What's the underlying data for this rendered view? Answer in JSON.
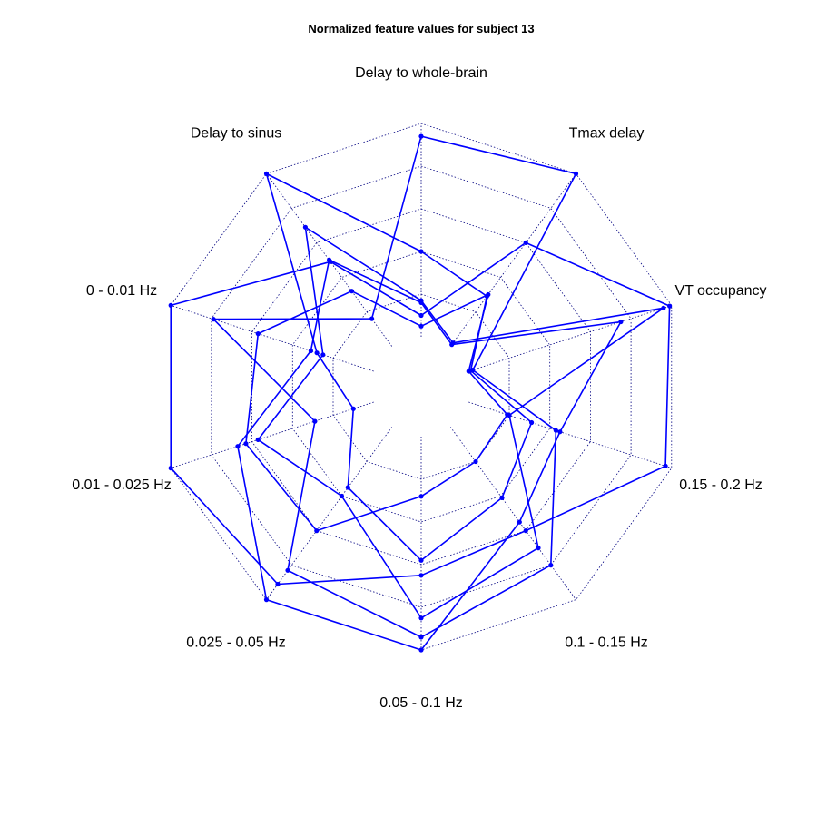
{
  "chart_data": {
    "type": "radar",
    "title": "Normalized feature values for subject 13",
    "axes": [
      "Delay to whole-brain",
      "Tmax delay",
      "VT occupancy",
      "0.15 - 0.2 Hz",
      "0.1 - 0.15 Hz",
      "0.05 - 0.1 Hz",
      "0.025 - 0.05 Hz",
      "0.01 - 0.025 Hz",
      "0 - 0.01 Hz",
      "Delay to sinus"
    ],
    "scale": [
      0,
      1
    ],
    "grid_levels": [
      0.2,
      0.4,
      0.6,
      0.8,
      1.0
    ],
    "line_color": "#0000ff",
    "grid_color": "#000080",
    "grid_style": "dotted",
    "series": [
      {
        "values": [
          0.1,
          0.6,
          0.99,
          0.97,
          0.6,
          0.65,
          0.91,
          1.0,
          1.0,
          0.49
        ]
      },
      {
        "values": [
          0.4,
          0.29,
          0.01,
          0.31,
          0.41,
          0.58,
          0.35,
          0.1,
          0.28,
          1.0
        ]
      },
      {
        "values": [
          0.94,
          1.0,
          0.02,
          0.43,
          0.8,
          0.94,
          0.83,
          0.29,
          0.79,
          0.16
        ]
      },
      {
        "values": [
          0.17,
          0.02,
          0.96,
          0.2,
          0.7,
          0.85,
          0.4,
          0.57,
          0.25,
          0.69
        ]
      },
      {
        "values": [
          0.16,
          0.01,
          0.75,
          0.45,
          0.55,
          1.0,
          1.0,
          0.67,
          0.31,
          0.5
        ]
      },
      {
        "values": [
          0.05,
          0.3,
          0.0,
          0.19,
          0.2,
          0.28,
          0.6,
          0.63,
          0.57,
          0.32
        ]
      }
    ]
  }
}
